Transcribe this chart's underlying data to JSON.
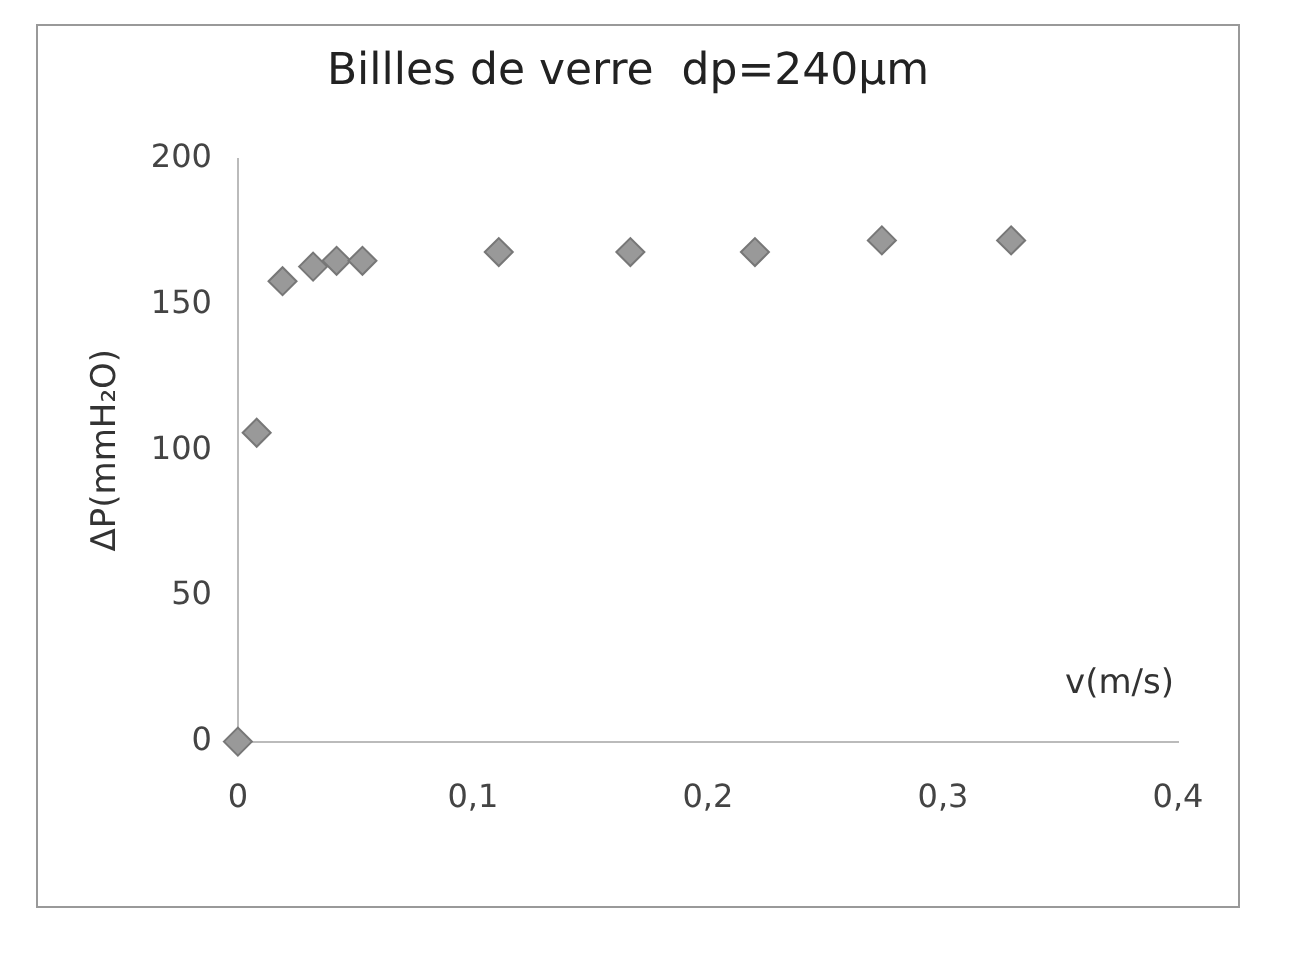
{
  "chart_data": {
    "type": "scatter",
    "title": "Billles de verre  dp=240µm",
    "xlabel": "v(m/s)",
    "ylabel": "ΔP(mmH₂O)",
    "x": [
      0,
      0.008,
      0.019,
      0.032,
      0.042,
      0.053,
      0.111,
      0.167,
      0.22,
      0.274,
      0.329
    ],
    "series": [
      {
        "color": "#999999",
        "values": [
          0,
          106,
          158,
          163,
          165,
          165,
          168,
          168,
          168,
          172,
          172
        ]
      }
    ],
    "xlim": [
      0,
      0.4
    ],
    "xticks": [
      {
        "value": 0,
        "label": "0"
      },
      {
        "value": 0.1,
        "label": "0,1"
      },
      {
        "value": 0.2,
        "label": "0,2"
      },
      {
        "value": 0.3,
        "label": "0,3"
      },
      {
        "value": 0.4,
        "label": "0,4"
      }
    ],
    "ylim": [
      0,
      200
    ],
    "yticks": [
      0,
      50,
      100,
      150,
      200
    ],
    "grid": false,
    "legend": false,
    "marker": "diamond"
  }
}
